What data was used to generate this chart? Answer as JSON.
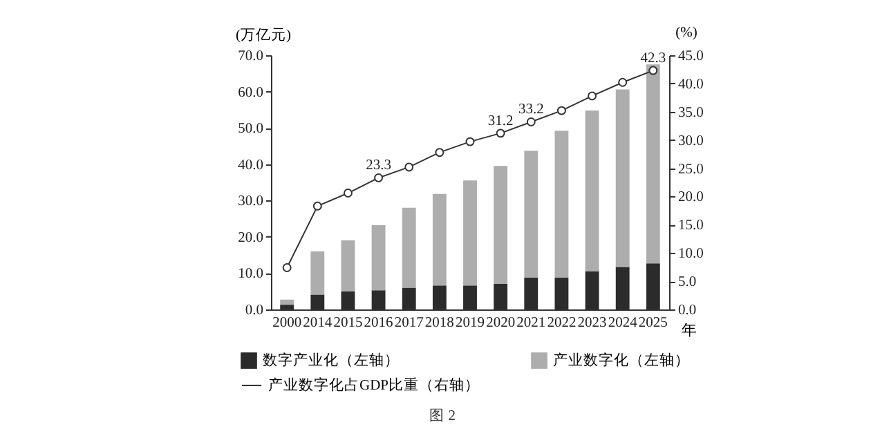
{
  "chart_data": {
    "type": "bar",
    "stacked": true,
    "categories": [
      "2000",
      "2014",
      "2015",
      "2016",
      "2017",
      "2018",
      "2019",
      "2020",
      "2021",
      "2022",
      "2023",
      "2024",
      "2025"
    ],
    "series": [
      {
        "name": "数字产业化（左轴）",
        "color": "#2b2b2b",
        "values": [
          1.3,
          4.1,
          5.0,
          5.3,
          6.0,
          6.6,
          6.6,
          7.1,
          8.8,
          8.8,
          10.5,
          11.7,
          12.7
        ]
      },
      {
        "name": "产业数字化（左轴）",
        "color": "#adadad",
        "values": [
          1.4,
          11.9,
          14.0,
          17.9,
          22.0,
          25.2,
          28.9,
          32.4,
          34.9,
          40.4,
          44.3,
          48.9,
          54.8
        ]
      },
      {
        "name": "产业数字化占GDP比重（右轴）",
        "type": "line",
        "axis": "y2",
        "color": "#333333",
        "marker": "circle",
        "values": [
          7.4,
          18.3,
          20.6,
          23.3,
          25.2,
          27.8,
          29.7,
          31.2,
          33.2,
          35.2,
          37.8,
          40.2,
          42.3
        ],
        "value_labels": [
          null,
          null,
          null,
          "23.3",
          null,
          null,
          null,
          "31.2",
          "33.2",
          null,
          null,
          null,
          "42.3"
        ]
      }
    ],
    "xlabel": "年",
    "ylabel": "(万亿元)",
    "y2label": "(%)",
    "ylim": [
      0,
      70
    ],
    "yticks": [
      {
        "value": 0,
        "label": "0.0"
      },
      {
        "value": 10,
        "label": "10.0"
      },
      {
        "value": 20,
        "label": "20.0"
      },
      {
        "value": 30,
        "label": "30.0"
      },
      {
        "value": 40,
        "label": "40.0"
      },
      {
        "value": 50,
        "label": "50.0"
      },
      {
        "value": 60,
        "label": "60.0"
      },
      {
        "value": 70,
        "label": "70.0"
      }
    ],
    "y2lim": [
      0,
      45
    ],
    "y2ticks": [
      {
        "value": 0,
        "label": "0.0"
      },
      {
        "value": 5,
        "label": "5.0"
      },
      {
        "value": 10,
        "label": "10.0"
      },
      {
        "value": 15,
        "label": "15.0"
      },
      {
        "value": 20,
        "label": "20.0"
      },
      {
        "value": 25,
        "label": "25.0"
      },
      {
        "value": 30,
        "label": "30.0"
      },
      {
        "value": 35,
        "label": "35.0"
      },
      {
        "value": 40,
        "label": "40.0"
      },
      {
        "value": 45,
        "label": "45.0"
      }
    ],
    "legend": "bottom",
    "grid": false,
    "annotations": [
      "图 2"
    ]
  }
}
